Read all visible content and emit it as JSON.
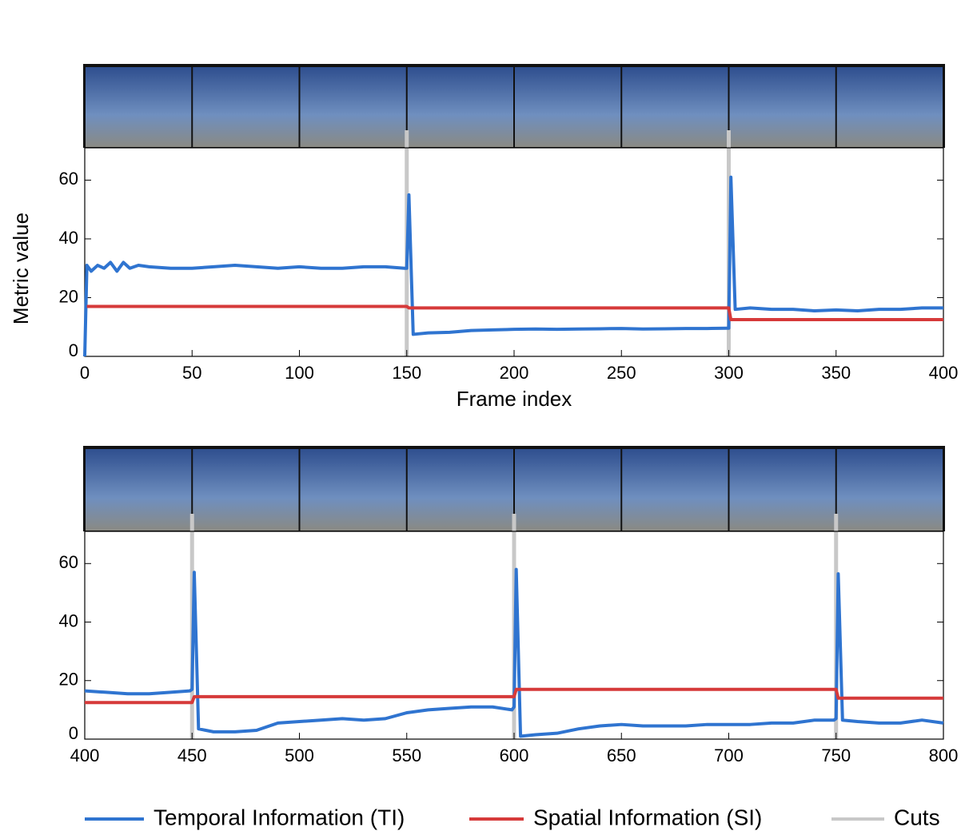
{
  "chart_data": [
    {
      "type": "line",
      "ylabel": "Metric value",
      "xlabel": "Frame index",
      "xlim": [
        0,
        400
      ],
      "ylim": [
        0,
        71
      ],
      "xticks": [
        0,
        50,
        100,
        150,
        200,
        250,
        300,
        350,
        400
      ],
      "yticks": [
        0,
        20,
        40,
        60
      ],
      "x": [
        0,
        1,
        3,
        6,
        9,
        12,
        15,
        18,
        21,
        25,
        30,
        40,
        50,
        60,
        70,
        80,
        90,
        100,
        110,
        120,
        130,
        140,
        149,
        150,
        151,
        153,
        160,
        170,
        180,
        190,
        200,
        210,
        220,
        230,
        240,
        250,
        260,
        270,
        280,
        290,
        299,
        300,
        301,
        303,
        310,
        320,
        330,
        340,
        350,
        360,
        370,
        380,
        390,
        400
      ],
      "series": [
        {
          "name": "Temporal Information (TI)",
          "color": "#2f74d0",
          "values": [
            0,
            31,
            29,
            31,
            30,
            32,
            29,
            32,
            30,
            31,
            30.5,
            30,
            30,
            30.5,
            31,
            30.5,
            30,
            30.5,
            30,
            30,
            30.5,
            30.5,
            30,
            30,
            55,
            7.5,
            8,
            8.2,
            8.8,
            9,
            9.2,
            9.3,
            9.2,
            9.3,
            9.4,
            9.5,
            9.3,
            9.4,
            9.5,
            9.5,
            9.6,
            9.6,
            61,
            16,
            16.5,
            16,
            16,
            15.5,
            15.8,
            15.5,
            16,
            16,
            16.5,
            16.5
          ]
        },
        {
          "name": "Spatial Information (SI)",
          "color": "#d63a3a",
          "values": [
            null,
            17,
            17,
            17,
            17,
            17,
            17,
            17,
            17,
            17,
            17,
            17,
            17,
            17,
            17,
            17,
            17,
            17,
            17,
            17,
            17,
            17,
            17,
            17,
            16.5,
            16.5,
            16.5,
            16.5,
            16.5,
            16.5,
            16.5,
            16.5,
            16.5,
            16.5,
            16.5,
            16.5,
            16.5,
            16.5,
            16.5,
            16.5,
            16.5,
            16.5,
            12.5,
            12.5,
            12.5,
            12.5,
            12.5,
            12.5,
            12.5,
            12.5,
            12.5,
            12.5,
            12.5,
            12.5
          ]
        }
      ],
      "cuts": {
        "name": "Cuts",
        "color": "#c8c8c8",
        "values": [
          150,
          300
        ]
      }
    },
    {
      "type": "line",
      "xlim": [
        400,
        800
      ],
      "ylim": [
        0,
        71
      ],
      "xticks": [
        400,
        450,
        500,
        550,
        600,
        650,
        700,
        750,
        800
      ],
      "yticks": [
        0,
        20,
        40,
        60
      ],
      "x": [
        400,
        410,
        420,
        430,
        440,
        449,
        450,
        451,
        453,
        460,
        470,
        480,
        490,
        500,
        510,
        520,
        530,
        540,
        550,
        560,
        570,
        580,
        590,
        599,
        600,
        601,
        603,
        610,
        620,
        630,
        640,
        650,
        660,
        670,
        680,
        690,
        700,
        710,
        720,
        730,
        740,
        749,
        750,
        751,
        753,
        760,
        770,
        780,
        790,
        800
      ],
      "series": [
        {
          "color": "#2f74d0",
          "values": [
            16.5,
            16,
            15.5,
            15.5,
            16,
            16.5,
            17,
            57,
            3.5,
            2.5,
            2.5,
            3,
            5.5,
            6,
            6.5,
            7,
            6.5,
            7,
            9,
            10,
            10.5,
            11,
            11,
            10,
            11,
            58,
            1,
            1.5,
            2,
            3.5,
            4.5,
            5,
            4.5,
            4.5,
            4.5,
            5,
            5,
            5,
            5.5,
            5.5,
            6.5,
            6.5,
            7,
            56.5,
            6.5,
            6,
            5.5,
            5.5,
            6.5,
            5.5
          ]
        },
        {
          "color": "#d63a3a",
          "values": [
            12.5,
            12.5,
            12.5,
            12.5,
            12.5,
            12.5,
            12.5,
            14.5,
            14.5,
            14.5,
            14.5,
            14.5,
            14.5,
            14.5,
            14.5,
            14.5,
            14.5,
            14.5,
            14.5,
            14.5,
            14.5,
            14.5,
            14.5,
            14.5,
            14.5,
            17,
            17,
            17,
            17,
            17,
            17,
            17,
            17,
            17,
            17,
            17,
            17,
            17,
            17,
            17,
            17,
            17,
            17,
            14,
            14,
            14,
            14,
            14,
            14,
            14
          ]
        }
      ],
      "cuts": {
        "color": "#c8c8c8",
        "values": [
          450,
          600,
          750
        ]
      }
    }
  ]
}
